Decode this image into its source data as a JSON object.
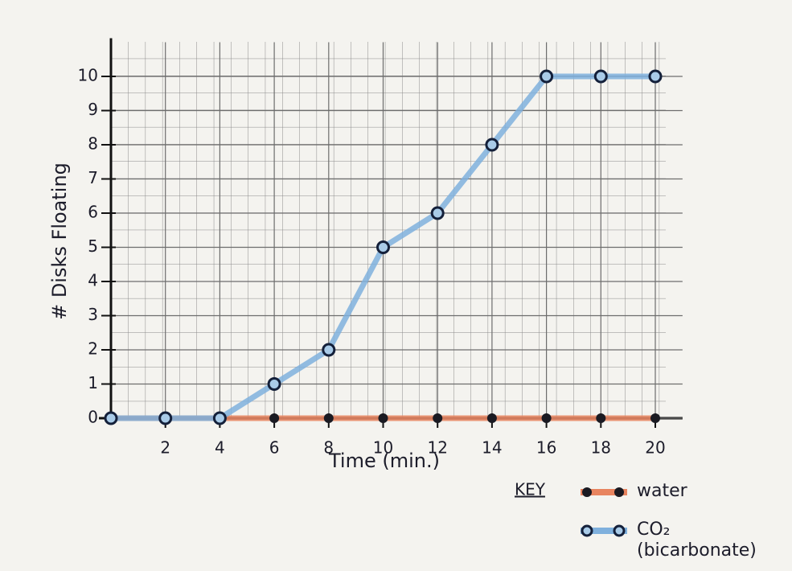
{
  "chart_data": {
    "type": "line",
    "x_label": "Time (min.)",
    "y_label": "# Disks Floating",
    "x": [
      0,
      2,
      4,
      6,
      8,
      10,
      12,
      14,
      16,
      18,
      20
    ],
    "series": [
      {
        "name": "water",
        "color": "#e8845f",
        "values": [
          0,
          0,
          0,
          0,
          0,
          0,
          0,
          0,
          0,
          0,
          0
        ]
      },
      {
        "name": "CO₂ (bicarbonate)",
        "color": "#7fb0dd",
        "values": [
          0,
          0,
          0,
          1,
          2,
          5,
          6,
          8,
          10,
          10,
          10
        ]
      }
    ],
    "legend_title": "KEY",
    "legend": "bottom-right",
    "xlim": [
      0,
      21
    ],
    "ylim": [
      0,
      11
    ],
    "xticks": [
      2,
      4,
      6,
      8,
      10,
      12,
      14,
      16,
      18,
      20
    ],
    "yticks": [
      0,
      1,
      2,
      3,
      4,
      5,
      6,
      7,
      8,
      9,
      10
    ],
    "grid": true
  }
}
